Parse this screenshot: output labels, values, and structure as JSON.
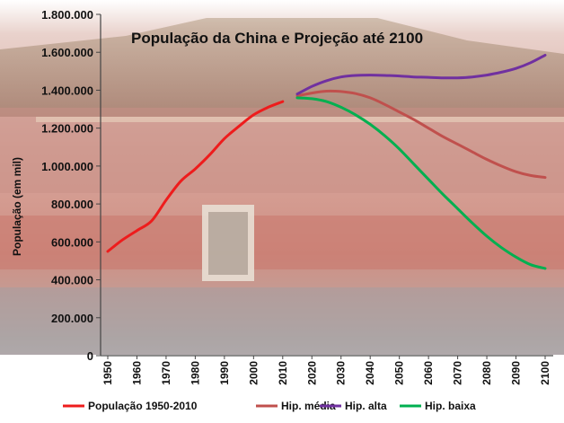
{
  "chart_data": {
    "type": "line",
    "title": "População da China e Projeção até 2100",
    "ylabel": "População (em mil)",
    "xlabel": "",
    "ylim": [
      0,
      1800000
    ],
    "yticks": [
      "0",
      "200.000",
      "400.000",
      "600.000",
      "800.000",
      "1.000.000",
      "1.200.000",
      "1.400.000",
      "1.600.000",
      "1.800.000"
    ],
    "xlim": [
      1950,
      2100
    ],
    "xticks": [
      "1950",
      "1960",
      "1970",
      "1980",
      "1990",
      "2000",
      "2010",
      "2020",
      "2030",
      "2040",
      "2050",
      "2060",
      "2070",
      "2080",
      "2090",
      "2100"
    ],
    "grid": false,
    "legend_position": "bottom",
    "series": [
      {
        "name": "População 1950-2010",
        "color": "#ee1c1c",
        "x": [
          1950,
          1955,
          1960,
          1965,
          1970,
          1975,
          1980,
          1985,
          1990,
          1995,
          2000,
          2005,
          2010
        ],
        "y": [
          550000,
          610000,
          660000,
          710000,
          820000,
          920000,
          985000,
          1060000,
          1145000,
          1210000,
          1270000,
          1310000,
          1340000
        ]
      },
      {
        "name": "Hip. média",
        "color": "#c0504d",
        "x": [
          2015,
          2020,
          2025,
          2030,
          2035,
          2040,
          2045,
          2050,
          2055,
          2060,
          2065,
          2070,
          2075,
          2080,
          2085,
          2090,
          2095,
          2100
        ],
        "y": [
          1370000,
          1385000,
          1395000,
          1393000,
          1382000,
          1360000,
          1325000,
          1285000,
          1245000,
          1200000,
          1155000,
          1115000,
          1075000,
          1035000,
          1000000,
          970000,
          950000,
          940000
        ]
      },
      {
        "name": "Hip. alta",
        "color": "#7030a0",
        "x": [
          2015,
          2020,
          2025,
          2030,
          2035,
          2040,
          2045,
          2050,
          2055,
          2060,
          2065,
          2070,
          2075,
          2080,
          2085,
          2090,
          2095,
          2100
        ],
        "y": [
          1380000,
          1420000,
          1450000,
          1470000,
          1478000,
          1480000,
          1478000,
          1475000,
          1470000,
          1468000,
          1465000,
          1465000,
          1470000,
          1480000,
          1495000,
          1515000,
          1545000,
          1585000
        ]
      },
      {
        "name": "Hip. baixa",
        "color": "#00b050",
        "x": [
          2015,
          2020,
          2025,
          2030,
          2035,
          2040,
          2045,
          2050,
          2055,
          2060,
          2065,
          2070,
          2075,
          2080,
          2085,
          2090,
          2095,
          2100
        ],
        "y": [
          1360000,
          1355000,
          1340000,
          1310000,
          1270000,
          1220000,
          1160000,
          1090000,
          1010000,
          930000,
          850000,
          775000,
          700000,
          630000,
          570000,
          520000,
          480000,
          460000
        ]
      }
    ]
  }
}
